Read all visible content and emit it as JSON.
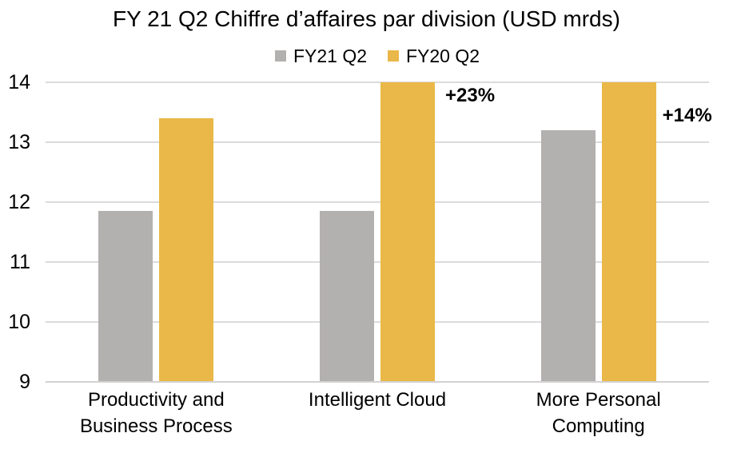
{
  "title": "FY 21 Q2 Chiffre d’affaires par division (USD mrds)",
  "legend": [
    {
      "label": "FY21 Q2",
      "color": "#B3B0B0"
    },
    {
      "label": "FY20 Q2",
      "color": "#E9B848"
    }
  ],
  "colors": {
    "series_gray": "#B3B0B0",
    "series_gold": "#E9B848",
    "gridline": "#DBDBDB",
    "axis_line": "#D4D1D1",
    "text": "#000000"
  },
  "chart_data": {
    "type": "bar",
    "title": "FY 21 Q2 Chiffre d’affaires par division (USD mrds)",
    "categories": [
      "Productivity and Business Process",
      "Intelligent Cloud",
      "More Personal Computing"
    ],
    "series": [
      {
        "name": "FY21 Q2",
        "color": "#B3B0B0",
        "values": [
          11.85,
          11.85,
          13.2
        ]
      },
      {
        "name": "FY20 Q2",
        "color": "#E9B848",
        "values": [
          13.4,
          14,
          14
        ]
      }
    ],
    "annotations": [
      {
        "category_index": 1,
        "text": "+23%"
      },
      {
        "category_index": 2,
        "text": "+14%"
      }
    ],
    "xlabel": "",
    "ylabel": "",
    "ylim": [
      9,
      14
    ],
    "yticks": [
      9,
      10,
      11,
      12,
      13,
      14
    ],
    "grid": true,
    "legend_position": "top",
    "note": "Gold bars for Intelligent Cloud and More Personal Computing are clipped at the axis maximum of 14"
  }
}
